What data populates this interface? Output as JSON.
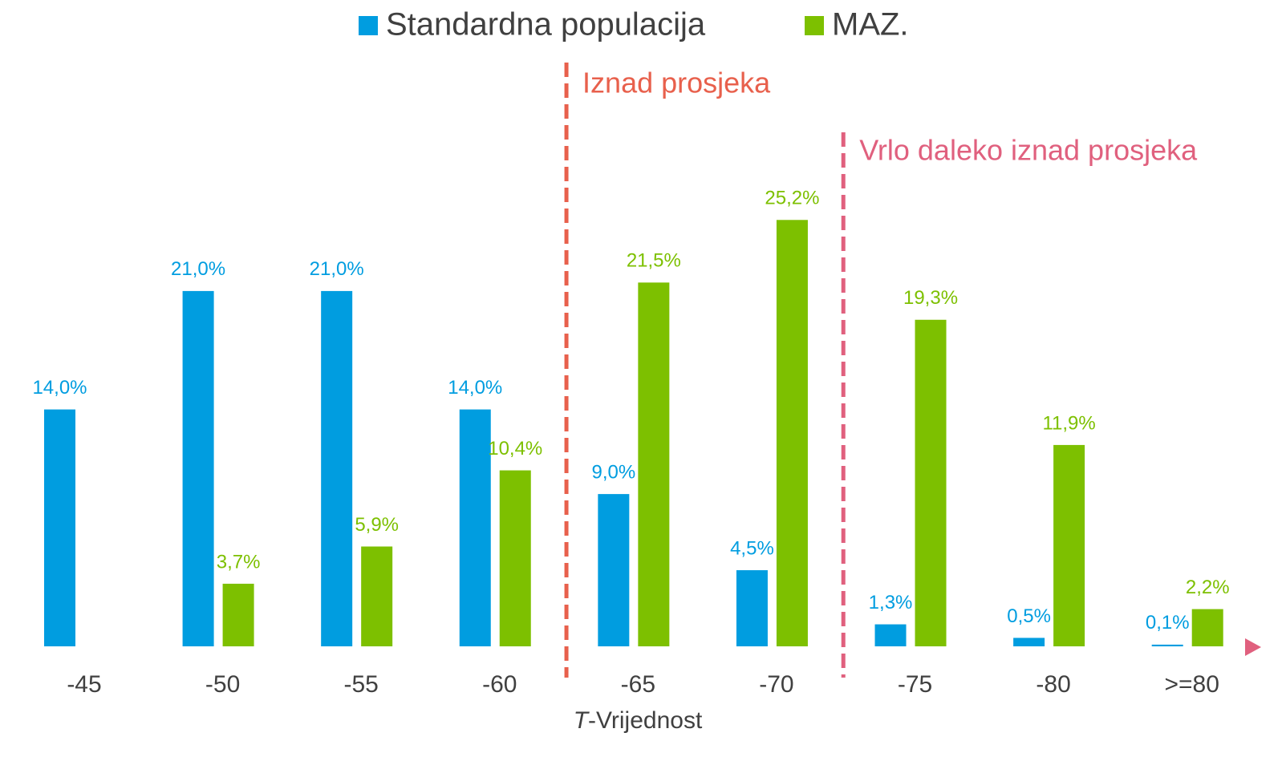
{
  "chart_data": {
    "type": "bar",
    "categories": [
      "-45",
      "-50",
      "-55",
      "-60",
      "-65",
      "-70",
      "-75",
      "-80",
      ">=80"
    ],
    "series": [
      {
        "name": "Standardna populacija",
        "color": "#009de0",
        "values": [
          14.0,
          21.0,
          21.0,
          14.0,
          9.0,
          4.5,
          1.3,
          0.5,
          0.1
        ],
        "value_labels": [
          "14,0%",
          "21,0%",
          "21,0%",
          "14,0%",
          "9,0%",
          "4,5%",
          "1,3%",
          "0,5%",
          "0,1%"
        ]
      },
      {
        "name": "MAZ.",
        "color": "#7dc000",
        "values": [
          null,
          3.7,
          5.9,
          10.4,
          21.5,
          25.2,
          19.3,
          11.9,
          2.2
        ],
        "value_labels": [
          null,
          "3,7%",
          "5,9%",
          "10,4%",
          "21,5%",
          "25,2%",
          "19,3%",
          "11,9%",
          "2,2%"
        ]
      }
    ],
    "xlabel_italic": "T",
    "xlabel": "-Vrijednost",
    "annotations": [
      {
        "text": "Iznad prosjeka",
        "color": "#e8604c"
      },
      {
        "text": "Vrlo daleko iznad prosjeka",
        "color": "#e0607e"
      }
    ],
    "ylim": [
      0,
      30
    ],
    "legend": "top"
  }
}
